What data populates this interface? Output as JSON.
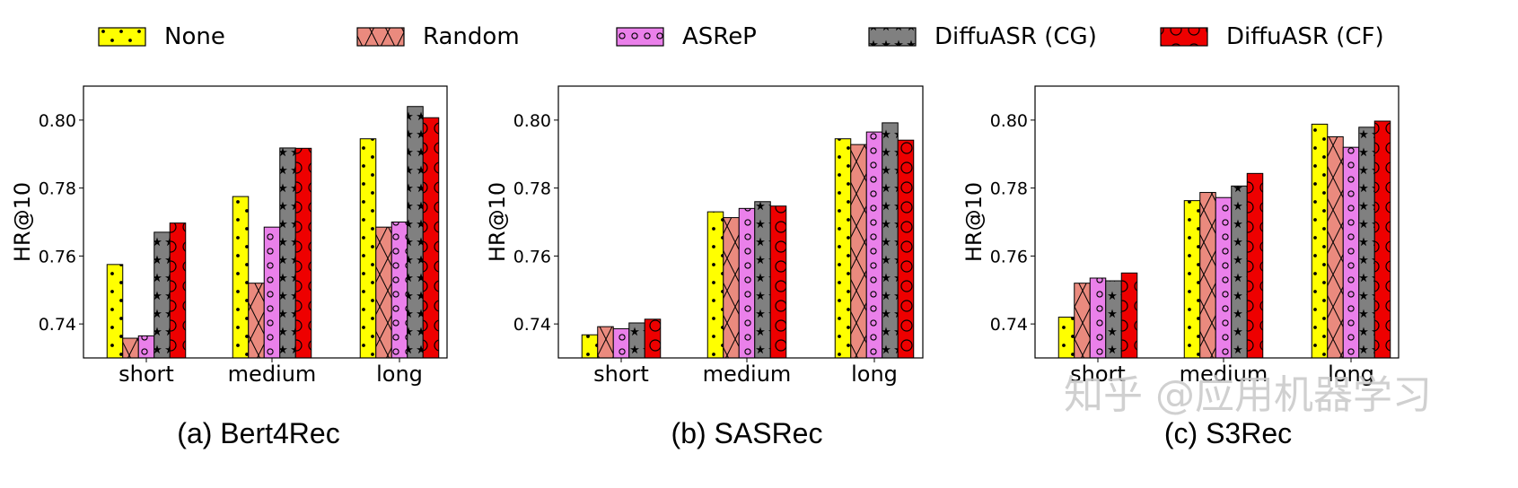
{
  "chart_data": [
    {
      "type": "bar",
      "caption": "(a) Bert4Rec",
      "ylabel": "HR@10",
      "ylim": [
        0.73,
        0.81
      ],
      "yticks": [
        "0.74",
        "0.76",
        "0.78",
        "0.80"
      ],
      "categories": [
        "short",
        "medium",
        "long"
      ],
      "series": [
        {
          "name": "None",
          "values": [
            0.7575,
            0.7775,
            0.7945
          ]
        },
        {
          "name": "Random",
          "values": [
            0.7358,
            0.752,
            0.7685
          ]
        },
        {
          "name": "ASReP",
          "values": [
            0.7365,
            0.7685,
            0.77
          ]
        },
        {
          "name": "DiffuASR (CG)",
          "values": [
            0.767,
            0.7918,
            0.804
          ]
        },
        {
          "name": "DiffuASR (CF)",
          "values": [
            0.7697,
            0.7917,
            0.8007
          ]
        }
      ]
    },
    {
      "type": "bar",
      "caption": "(b) SASRec",
      "ylabel": "HR@10",
      "ylim": [
        0.73,
        0.81
      ],
      "yticks": [
        "0.74",
        "0.76",
        "0.78",
        "0.80"
      ],
      "categories": [
        "short",
        "medium",
        "long"
      ],
      "series": [
        {
          "name": "None",
          "values": [
            0.7368,
            0.773,
            0.7945
          ]
        },
        {
          "name": "Random",
          "values": [
            0.7392,
            0.7713,
            0.7928
          ]
        },
        {
          "name": "ASReP",
          "values": [
            0.7386,
            0.774,
            0.7965
          ]
        },
        {
          "name": "DiffuASR (CG)",
          "values": [
            0.7403,
            0.776,
            0.7992
          ]
        },
        {
          "name": "DiffuASR (CF)",
          "values": [
            0.7414,
            0.7747,
            0.7941
          ]
        }
      ]
    },
    {
      "type": "bar",
      "caption": "(c) S3Rec",
      "ylabel": "HR@10",
      "ylim": [
        0.73,
        0.81
      ],
      "yticks": [
        "0.74",
        "0.76",
        "0.78",
        "0.80"
      ],
      "categories": [
        "short",
        "medium",
        "long"
      ],
      "series": [
        {
          "name": "None",
          "values": [
            0.742,
            0.7763,
            0.7988
          ]
        },
        {
          "name": "Random",
          "values": [
            0.752,
            0.7787,
            0.7951
          ]
        },
        {
          "name": "ASReP",
          "values": [
            0.7535,
            0.7772,
            0.792
          ]
        },
        {
          "name": "DiffuASR (CG)",
          "values": [
            0.7527,
            0.7806,
            0.7979
          ]
        },
        {
          "name": "DiffuASR (CF)",
          "values": [
            0.755,
            0.7843,
            0.7997
          ]
        }
      ]
    }
  ],
  "legend": [
    {
      "label": "None",
      "color": "#ffff00",
      "pattern": "dots"
    },
    {
      "label": "Random",
      "color": "#ea8a7e",
      "pattern": "cross"
    },
    {
      "label": "ASReP",
      "color": "#ea80ea",
      "pattern": "circles"
    },
    {
      "label": "DiffuASR (CG)",
      "color": "#808080",
      "pattern": "stars"
    },
    {
      "label": "DiffuASR (CF)",
      "color": "#ee0000",
      "pattern": "rings"
    }
  ],
  "watermark": "知乎 @应用机器学习"
}
